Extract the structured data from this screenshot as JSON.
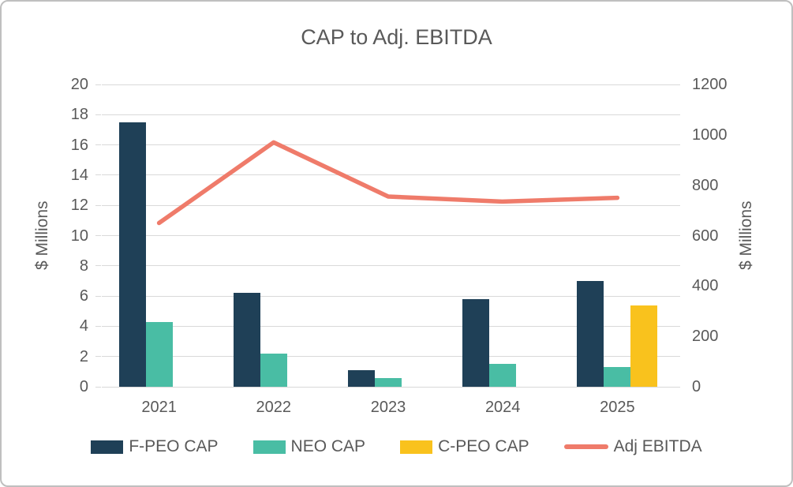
{
  "chart_data": {
    "type": "combo-bar-line",
    "title": "CAP to Adj. EBITDA",
    "categories": [
      "2021",
      "2022",
      "2023",
      "2024",
      "2025"
    ],
    "series": [
      {
        "name": "F-PEO CAP",
        "type": "bar",
        "axis": "left",
        "color": "#1f4057",
        "values": [
          17.5,
          6.2,
          1.1,
          5.8,
          7.0
        ]
      },
      {
        "name": "NEO CAP",
        "type": "bar",
        "axis": "left",
        "color": "#49bda4",
        "values": [
          4.3,
          2.2,
          0.6,
          1.5,
          1.3
        ]
      },
      {
        "name": "C-PEO CAP",
        "type": "bar",
        "axis": "left",
        "color": "#f9c21d",
        "values": [
          0,
          0,
          0,
          0,
          5.4
        ]
      },
      {
        "name": "Adj EBITDA",
        "type": "line",
        "axis": "right",
        "color": "#ef7b6a",
        "values": [
          650,
          970,
          755,
          735,
          750
        ]
      }
    ],
    "axes": {
      "left": {
        "label": "$ Millions",
        "min": 0,
        "max": 20,
        "step": 2,
        "ticks": [
          "20",
          "18",
          "16",
          "14",
          "12",
          "10",
          "8",
          "6",
          "4",
          "2",
          "0"
        ]
      },
      "right": {
        "label": "$ Millions",
        "min": 0,
        "max": 1200,
        "step": 200,
        "ticks": [
          "1200",
          "1000",
          "800",
          "600",
          "400",
          "200",
          "0"
        ]
      }
    },
    "grid": true,
    "legend_position": "bottom"
  },
  "colors": {
    "text": "#595959",
    "gridline": "#d9d9d9",
    "frame_border": "#bfbfbf",
    "background": "#ffffff"
  }
}
